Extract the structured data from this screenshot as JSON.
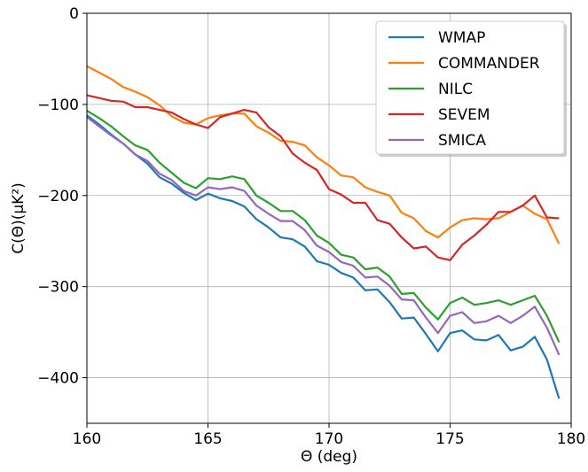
{
  "chart_data": {
    "type": "line",
    "xlabel": "Θ (deg)",
    "ylabel": "C(Θ)(μK²)",
    "xlim": [
      160,
      180
    ],
    "ylim": [
      -450,
      0
    ],
    "xticks": [
      160,
      165,
      170,
      175,
      180
    ],
    "yticks": [
      0,
      -100,
      -200,
      -300,
      -400
    ],
    "xtick_labels": [
      "160",
      "165",
      "170",
      "175",
      "180"
    ],
    "ytick_labels": [
      "0",
      "−100",
      "−200",
      "−300",
      "−400"
    ],
    "grid": true,
    "legend_position": "top-right",
    "series": [
      {
        "name": "WMAP",
        "color": "#1f77b4",
        "x": [
          160,
          160.5,
          161,
          161.5,
          162,
          162.5,
          163,
          163.5,
          164,
          164.5,
          165,
          165.5,
          166,
          166.5,
          167,
          167.5,
          168,
          168.5,
          169,
          169.5,
          170,
          170.5,
          171,
          171.5,
          172,
          172.5,
          173,
          173.5,
          174,
          174.5,
          175,
          175.5,
          176,
          176.5,
          177,
          177.5,
          178,
          178.5,
          179,
          179.5
        ],
        "y": [
          -112,
          -122,
          -133,
          -143,
          -155,
          -165,
          -180,
          -187,
          -197,
          -205,
          -198,
          -203,
          -206,
          -212,
          -226,
          -235,
          -246,
          -248,
          -256,
          -272,
          -276,
          -285,
          -290,
          -304,
          -303,
          -317,
          -335,
          -334,
          -352,
          -371,
          -351,
          -348,
          -358,
          -359,
          -353,
          -370,
          -366,
          -355,
          -380,
          -423
        ]
      },
      {
        "name": "COMMANDER",
        "color": "#ff7f0e",
        "x": [
          160,
          160.5,
          161,
          161.5,
          162,
          162.5,
          163,
          163.5,
          164,
          164.5,
          165,
          165.5,
          166,
          166.5,
          167,
          167.5,
          168,
          168.5,
          169,
          169.5,
          170,
          170.5,
          171,
          171.5,
          172,
          172.5,
          173,
          173.5,
          174,
          174.5,
          175,
          175.5,
          176,
          176.5,
          177,
          177.5,
          178,
          178.5,
          179,
          179.5
        ],
        "y": [
          -58,
          -65,
          -72,
          -81,
          -86,
          -92,
          -101,
          -113,
          -120,
          -122,
          -115,
          -112,
          -110,
          -110,
          -124,
          -131,
          -140,
          -141,
          -145,
          -158,
          -167,
          -178,
          -180,
          -191,
          -196,
          -200,
          -219,
          -225,
          -239,
          -246,
          -235,
          -227,
          -225,
          -226,
          -225,
          -218,
          -211,
          -220,
          -226,
          -253
        ]
      },
      {
        "name": "NILC",
        "color": "#2ca02c",
        "x": [
          160,
          160.5,
          161,
          161.5,
          162,
          162.5,
          163,
          163.5,
          164,
          164.5,
          165,
          165.5,
          166,
          166.5,
          167,
          167.5,
          168,
          168.5,
          169,
          169.5,
          170,
          170.5,
          171,
          171.5,
          172,
          172.5,
          173,
          173.5,
          174,
          174.5,
          175,
          175.5,
          176,
          176.5,
          177,
          177.5,
          178,
          178.5,
          179,
          179.5
        ],
        "y": [
          -107,
          -115,
          -124,
          -135,
          -145,
          -150,
          -164,
          -175,
          -186,
          -192,
          -181,
          -182,
          -179,
          -182,
          -200,
          -208,
          -217,
          -217,
          -227,
          -244,
          -252,
          -265,
          -268,
          -281,
          -279,
          -289,
          -308,
          -307,
          -323,
          -336,
          -318,
          -312,
          -320,
          -318,
          -315,
          -320,
          -315,
          -310,
          -332,
          -361
        ]
      },
      {
        "name": "SEVEM",
        "color": "#d62728",
        "x": [
          160,
          160.5,
          161,
          161.5,
          162,
          162.5,
          163,
          163.5,
          164,
          164.5,
          165,
          165.5,
          166,
          166.5,
          167,
          167.5,
          168,
          168.5,
          169,
          169.5,
          170,
          170.5,
          171,
          171.5,
          172,
          172.5,
          173,
          173.5,
          174,
          174.5,
          175,
          175.5,
          176,
          176.5,
          177,
          177.5,
          178,
          178.5,
          179,
          179.5
        ],
        "y": [
          -90,
          -93,
          -96,
          -97,
          -103,
          -103,
          -106,
          -109,
          -116,
          -122,
          -126,
          -114,
          -110,
          -106,
          -109,
          -125,
          -135,
          -154,
          -164,
          -172,
          -193,
          -199,
          -208,
          -208,
          -227,
          -231,
          -246,
          -258,
          -256,
          -268,
          -271,
          -254,
          -244,
          -232,
          -218,
          -218,
          -211,
          -200,
          -224,
          -225
        ]
      },
      {
        "name": "SMICA",
        "color": "#9467bd",
        "x": [
          160,
          160.5,
          161,
          161.5,
          162,
          162.5,
          163,
          163.5,
          164,
          164.5,
          165,
          165.5,
          166,
          166.5,
          167,
          167.5,
          168,
          168.5,
          169,
          169.5,
          170,
          170.5,
          171,
          171.5,
          172,
          172.5,
          173,
          173.5,
          174,
          174.5,
          175,
          175.5,
          176,
          176.5,
          177,
          177.5,
          178,
          178.5,
          179,
          179.5
        ],
        "y": [
          -114,
          -124,
          -134,
          -143,
          -155,
          -162,
          -176,
          -183,
          -195,
          -200,
          -191,
          -193,
          -191,
          -195,
          -211,
          -220,
          -228,
          -228,
          -238,
          -255,
          -262,
          -273,
          -277,
          -290,
          -289,
          -299,
          -314,
          -315,
          -334,
          -351,
          -332,
          -328,
          -340,
          -338,
          -332,
          -340,
          -332,
          -322,
          -345,
          -375
        ]
      }
    ]
  }
}
